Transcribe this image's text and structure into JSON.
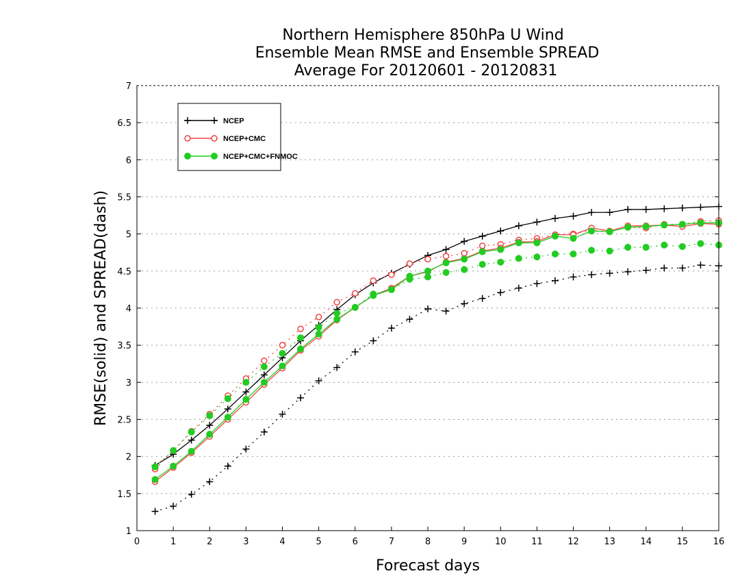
{
  "chart_data": {
    "type": "line",
    "title": [
      "Northern Hemisphere 850hPa U Wind",
      "Ensemble Mean RMSE and Ensemble SPREAD",
      "Average For 20120601 - 20120831"
    ],
    "xlabel": "Forecast days",
    "ylabel": "RMSE(solid) and SPREAD(dash)",
    "xlim": [
      0,
      16
    ],
    "ylim": [
      1,
      7
    ],
    "xticks": [
      "0",
      "1",
      "2",
      "3",
      "4",
      "5",
      "6",
      "7",
      "8",
      "9",
      "10",
      "11",
      "12",
      "13",
      "14",
      "15",
      "16"
    ],
    "yticks": [
      "1",
      "1.5",
      "2",
      "2.5",
      "3",
      "3.5",
      "4",
      "4.5",
      "5",
      "5.5",
      "6",
      "6.5",
      "7"
    ],
    "grid": "horizontal-dotted",
    "legend_position": "top-left",
    "x": [
      0.5,
      1,
      1.5,
      2,
      2.5,
      3,
      3.5,
      4,
      4.5,
      5,
      5.5,
      6,
      6.5,
      7,
      7.5,
      8,
      8.5,
      9,
      9.5,
      10,
      10.5,
      11,
      11.5,
      12,
      12.5,
      13,
      13.5,
      14,
      14.5,
      15,
      15.5,
      16
    ],
    "series": [
      {
        "name": "NCEP",
        "color": "#000000",
        "marker": "plus",
        "rmse": [
          1.88,
          2.03,
          2.22,
          2.42,
          2.64,
          2.87,
          3.1,
          3.33,
          3.56,
          3.77,
          3.98,
          4.18,
          4.34,
          4.47,
          4.59,
          4.71,
          4.79,
          4.9,
          4.97,
          5.04,
          5.11,
          5.16,
          5.21,
          5.24,
          5.29,
          5.29,
          5.33,
          5.33,
          5.34,
          5.35,
          5.36,
          5.37
        ],
        "spread": [
          1.26,
          1.33,
          1.49,
          1.66,
          1.87,
          2.1,
          2.33,
          2.57,
          2.79,
          3.02,
          3.2,
          3.41,
          3.56,
          3.73,
          3.85,
          3.99,
          3.96,
          4.06,
          4.13,
          4.21,
          4.27,
          4.33,
          4.37,
          4.42,
          4.45,
          4.47,
          4.49,
          4.51,
          4.54,
          4.54,
          4.58,
          4.57
        ]
      },
      {
        "name": "NCEP+CMC",
        "color": "#ee4444",
        "marker": "open-circle",
        "rmse": [
          1.66,
          1.85,
          2.05,
          2.27,
          2.5,
          2.73,
          2.97,
          3.19,
          3.43,
          3.62,
          3.84,
          4.01,
          4.17,
          4.27,
          4.43,
          4.49,
          4.62,
          4.67,
          4.77,
          4.81,
          4.89,
          4.9,
          4.99,
          4.99,
          5.08,
          5.04,
          5.11,
          5.11,
          5.12,
          5.1,
          5.14,
          5.13
        ],
        "spread": [
          1.83,
          2.08,
          2.34,
          2.57,
          2.82,
          3.05,
          3.29,
          3.5,
          3.72,
          3.88,
          4.08,
          4.2,
          4.37,
          4.45,
          4.6,
          4.66,
          4.7,
          4.74,
          4.84,
          4.86,
          4.92,
          4.94,
          4.99,
          5.0,
          5.05,
          5.03,
          5.09,
          5.08,
          5.13,
          5.13,
          5.17,
          5.18
        ]
      },
      {
        "name": "NCEP+CMC+FNMOC",
        "color": "#22cc22",
        "marker": "filled-circle",
        "rmse": [
          1.69,
          1.87,
          2.07,
          2.3,
          2.53,
          2.77,
          3.0,
          3.22,
          3.45,
          3.65,
          3.85,
          4.01,
          4.17,
          4.25,
          4.43,
          4.5,
          4.61,
          4.66,
          4.76,
          4.79,
          4.88,
          4.88,
          4.97,
          4.94,
          5.04,
          5.03,
          5.09,
          5.1,
          5.12,
          5.13,
          5.15,
          5.15
        ],
        "spread": [
          1.86,
          2.08,
          2.33,
          2.55,
          2.78,
          3.0,
          3.21,
          3.39,
          3.6,
          3.74,
          3.93,
          4.01,
          4.19,
          4.25,
          4.39,
          4.42,
          4.48,
          4.52,
          4.59,
          4.62,
          4.67,
          4.69,
          4.73,
          4.73,
          4.78,
          4.77,
          4.82,
          4.82,
          4.85,
          4.83,
          4.87,
          4.85
        ]
      }
    ]
  }
}
